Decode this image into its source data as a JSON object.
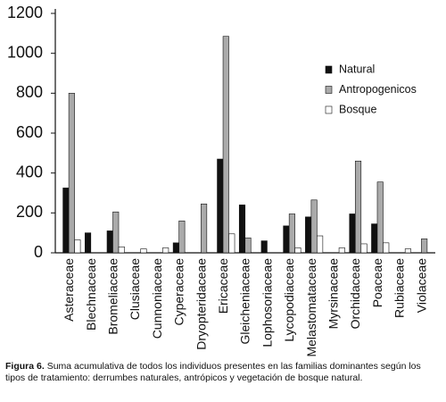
{
  "chart_data": {
    "type": "bar",
    "categories": [
      "Asteraceae",
      "Blechnaceae",
      "Bromeliaceae",
      "Clusiaceae",
      "Cunnoniaceae",
      "Cyperaceae",
      "Dryopteridaceae",
      "Ericaceae",
      "Gleicheniaceae",
      "Lophosoriaceae",
      "Lycopodiaceae",
      "Melastomataceae",
      "Myrsinaceae",
      "Orchidaceae",
      "Poaceae",
      "Rubiaceae",
      "Violaceae"
    ],
    "series": [
      {
        "name": "Natural",
        "color": "#111111",
        "values": [
          325,
          100,
          110,
          0,
          0,
          50,
          0,
          470,
          240,
          60,
          135,
          180,
          0,
          195,
          145,
          0,
          0
        ]
      },
      {
        "name": "Antropogenicos",
        "color": "#aaaaaa",
        "values": [
          800,
          0,
          205,
          0,
          0,
          160,
          245,
          1085,
          75,
          0,
          195,
          265,
          0,
          460,
          355,
          0,
          70
        ]
      },
      {
        "name": "Bosque",
        "color": "#ffffff",
        "values": [
          65,
          0,
          30,
          20,
          25,
          0,
          0,
          95,
          0,
          0,
          25,
          85,
          25,
          45,
          50,
          20,
          0
        ]
      }
    ],
    "ylim": [
      0,
      1200
    ],
    "yticks": [
      0,
      200,
      400,
      600,
      800,
      1000,
      1200
    ],
    "grid": false,
    "legend": "upper right",
    "caption_label": "Figura 6.",
    "caption": "Suma acumulativa de todos los individuos presentes en las familias dominantes según los tipos de tratamiento: derrumbes naturales, antrópicos y vegetación de bosque natural."
  }
}
